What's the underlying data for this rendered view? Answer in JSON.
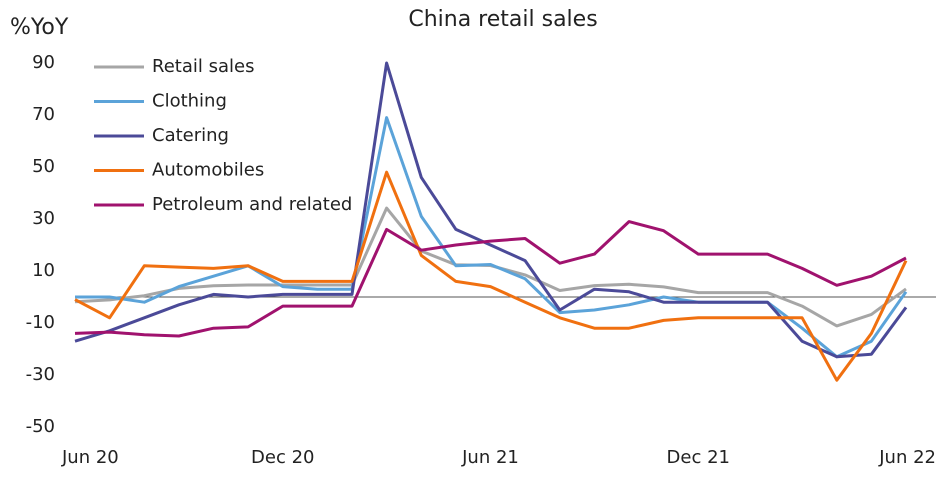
{
  "chart_data": {
    "type": "line",
    "title": "China retail sales",
    "y_label": "%YoY",
    "categories": [
      "Jun 20",
      null,
      null,
      null,
      null,
      null,
      "Dec 20",
      null,
      null,
      null,
      null,
      null,
      "Jun 21",
      null,
      null,
      null,
      null,
      null,
      "Dec 21",
      null,
      null,
      null,
      null,
      null,
      "Jun 22"
    ],
    "series": [
      {
        "name": "Retail sales",
        "color": "#a6a6a6",
        "values": [
          -1.8,
          -1.1,
          0.5,
          3.3,
          4.3,
          4.6,
          4.6,
          4.6,
          4.6,
          34.2,
          17.7,
          12.4,
          12.1,
          8.5,
          2.5,
          4.4,
          4.9,
          3.9,
          1.7,
          1.7,
          1.7,
          -3.5,
          -11.1,
          -6.7,
          3.1
        ]
      },
      {
        "name": "Clothing",
        "color": "#5ba3d9",
        "values": [
          0,
          0,
          -2,
          4,
          8,
          12,
          4,
          3,
          3,
          69,
          31,
          12,
          12.5,
          7,
          -6,
          -5,
          -3,
          0,
          -2,
          -2,
          -2,
          -12,
          -23,
          -17,
          2
        ]
      },
      {
        "name": "Catering",
        "color": "#4b4a98",
        "values": [
          -17,
          -13,
          -8,
          -3,
          1,
          0,
          1,
          1,
          1,
          90,
          46,
          26,
          20,
          14,
          -5,
          3,
          2,
          -2,
          -2,
          -2,
          -2,
          -17,
          -23,
          -22,
          -4
        ]
      },
      {
        "name": "Automobiles",
        "color": "#f07010",
        "values": [
          -1,
          -8,
          12,
          11.5,
          11,
          12,
          6,
          6,
          6,
          48,
          16,
          6,
          4,
          -2,
          -8,
          -12,
          -12,
          -9,
          -8,
          -8,
          -8,
          -8,
          -32,
          -14,
          14
        ]
      },
      {
        "name": "Petroleum and related",
        "color": "#a0126e",
        "values": [
          -14,
          -13.5,
          -14.5,
          -15,
          -12,
          -11.5,
          -3.5,
          -3.5,
          -3.5,
          26,
          18,
          20,
          21.5,
          22.5,
          13,
          16.5,
          29,
          25.5,
          16.5,
          16.5,
          16.5,
          11,
          4.5,
          8,
          15
        ]
      }
    ],
    "ylim": [
      -50,
      90
    ],
    "yticks": [
      -50,
      -30,
      -10,
      10,
      30,
      50,
      70,
      90
    ],
    "legend": "upper left"
  }
}
